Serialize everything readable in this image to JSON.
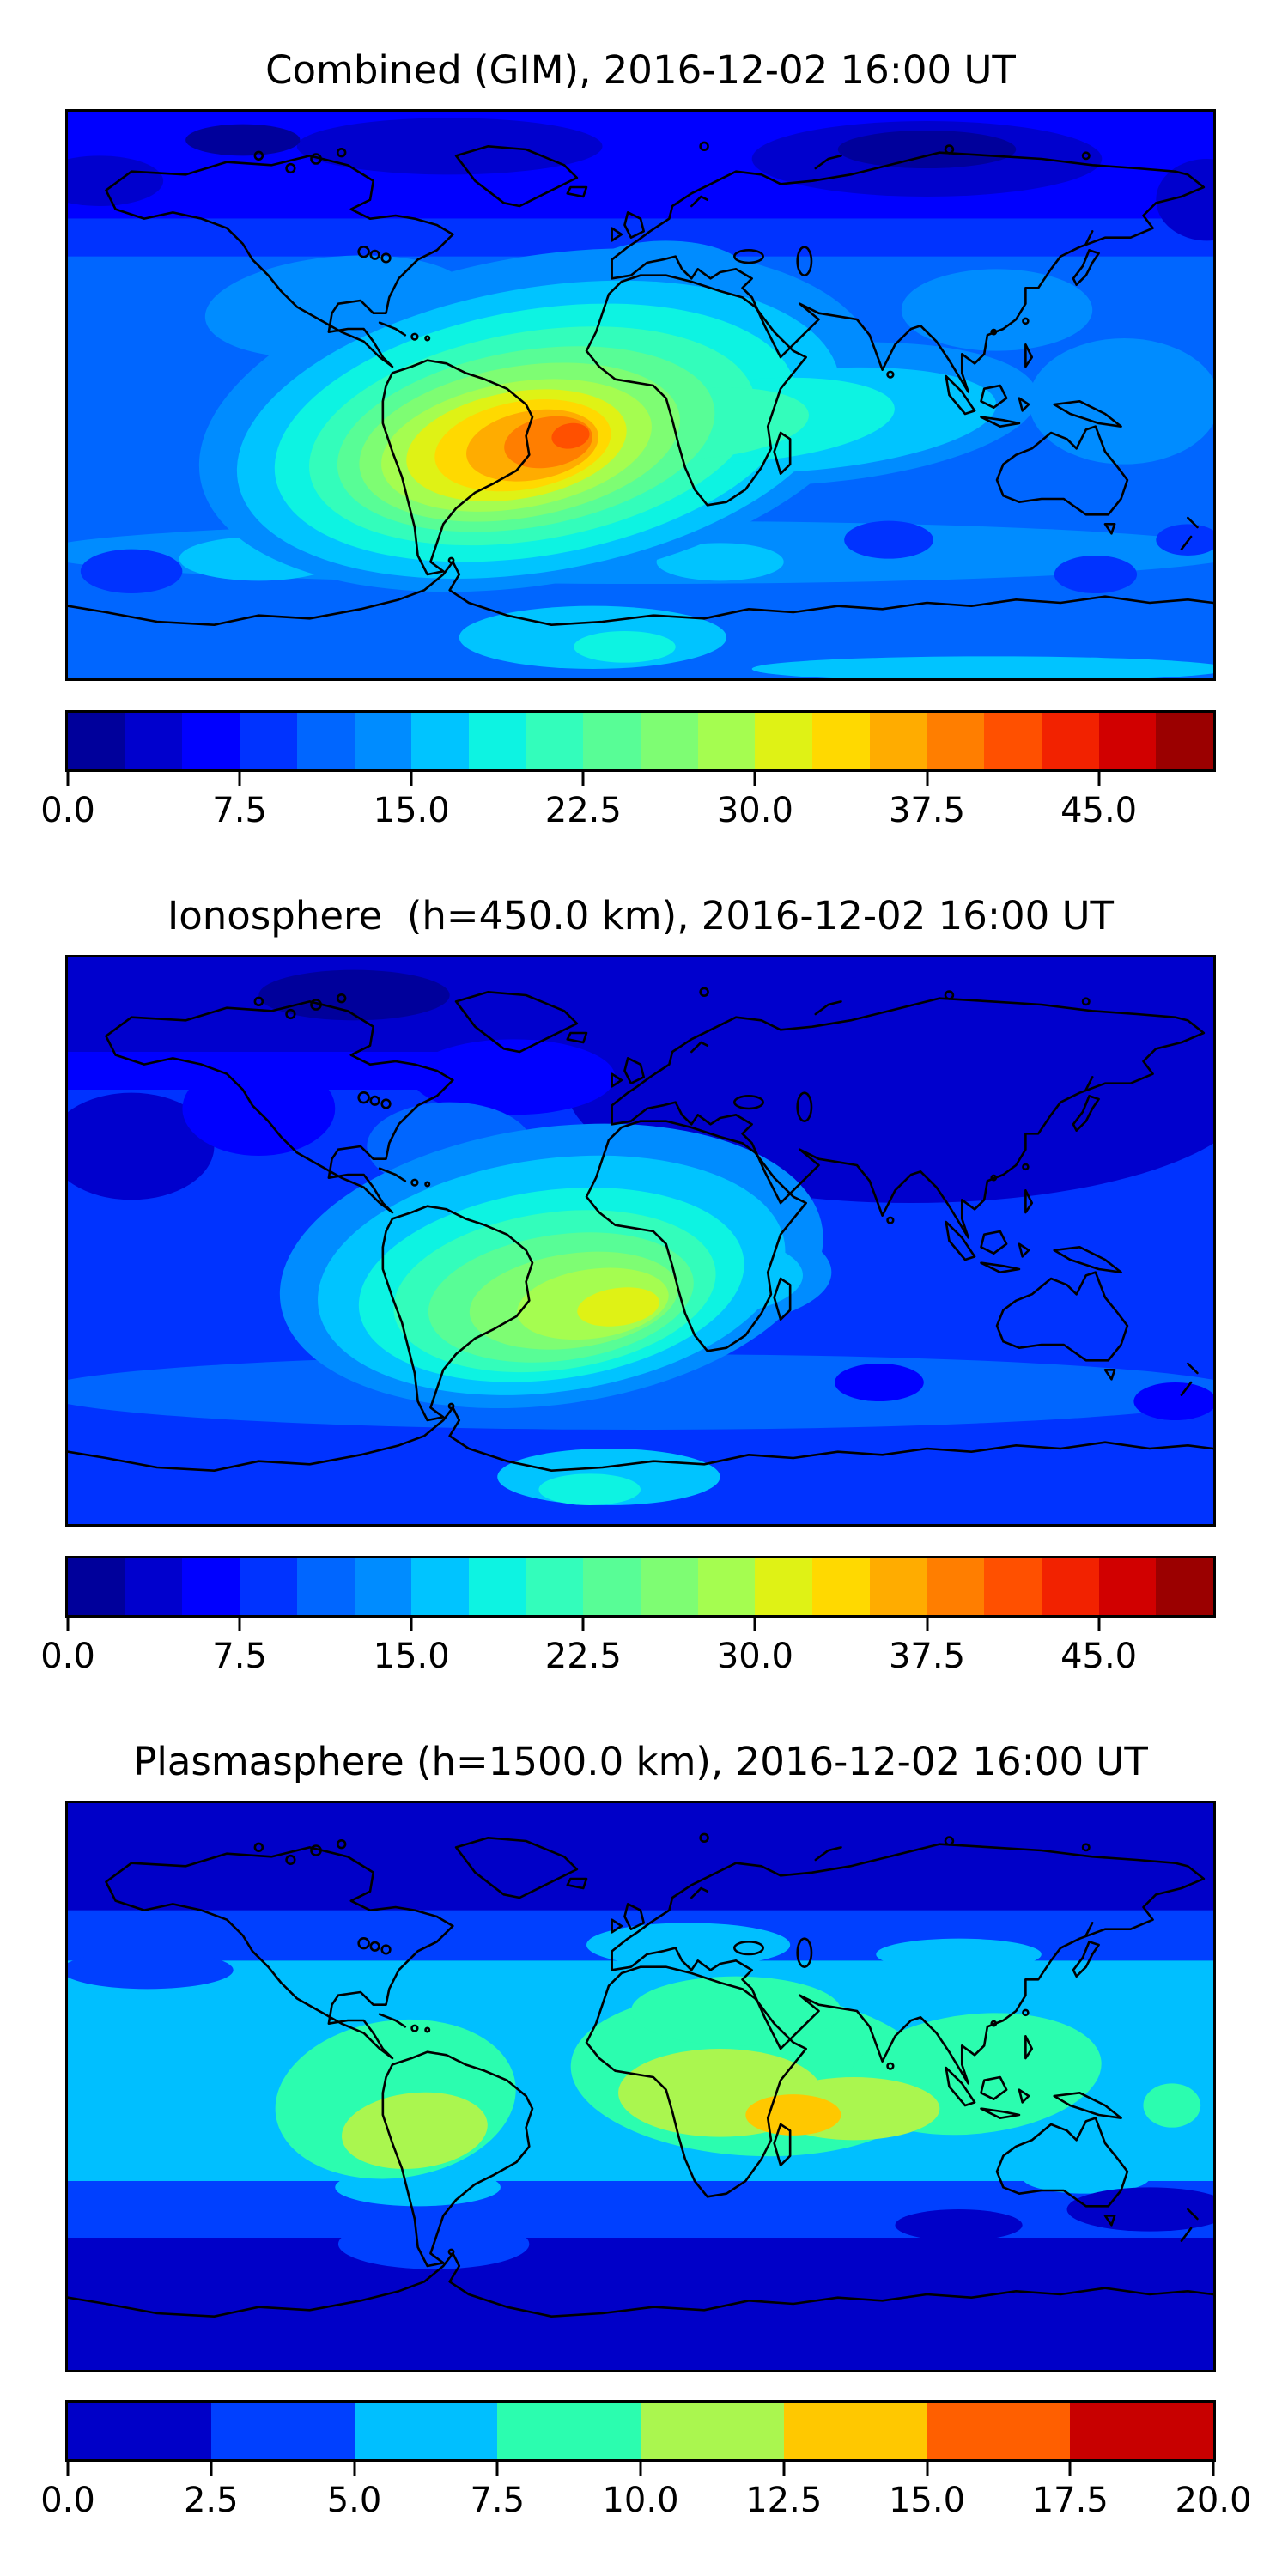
{
  "figure": {
    "background": "#ffffff",
    "frame_color": "#000000",
    "n_panels": 3
  },
  "chart_data": [
    {
      "type": "filled_contour_map",
      "title": "Combined (GIM), 2016-12-02 16:00 UT",
      "layer": "Combined (GIM)",
      "datetime": "2016-12-02 16:00 UT",
      "projection": "equirectangular",
      "lon_range": [
        -180,
        180
      ],
      "lat_range": [
        -90,
        90
      ],
      "colormap": "jet",
      "levels": {
        "min": 0,
        "max": 50,
        "step": 2.5
      },
      "colorbar_orientation": "horizontal",
      "colorbar_ticks": {
        "labels": [
          "0.0",
          "7.5",
          "15.0",
          "22.5",
          "30.0",
          "37.5",
          "45.0"
        ],
        "values": [
          0,
          7.5,
          15,
          22.5,
          30,
          37.5,
          45
        ]
      },
      "palette": [
        "#00009B",
        "#0000CD",
        "#0000FF",
        "#0033FF",
        "#0066FF",
        "#008CFF",
        "#00C4FF",
        "#0DF3E2",
        "#33FDBB",
        "#58FD96",
        "#7EFD73",
        "#A5FD50",
        "#DFF215",
        "#FFD900",
        "#FFAC00",
        "#FF7E00",
        "#FF5000",
        "#F22200",
        "#D10000",
        "#9B0000"
      ],
      "peak": {
        "value": 42,
        "lon": -22,
        "lat": -13,
        "region": "equatorial South Atlantic between Brazil and Africa"
      },
      "base_color": "#0066FF",
      "base_level": 10,
      "feature_format": {
        "band": [
          "lat_from",
          "lat_to",
          "color",
          "level"
        ],
        "ellipse": [
          "lon",
          "lat",
          "rx",
          "ry",
          "rot_deg",
          "color",
          "level"
        ]
      },
      "features": [
        {
          "band": [
            90,
            56,
            "#0000FF",
            5
          ]
        },
        {
          "band": [
            56,
            44,
            "#0033FF",
            7.5
          ]
        },
        {
          "ellipse": [
            -170,
            68,
            20,
            8,
            0,
            "#0000CD",
            2.5
          ]
        },
        {
          "ellipse": [
            -60,
            79,
            48,
            9,
            0,
            "#0000CD",
            2.5
          ]
        },
        {
          "ellipse": [
            90,
            75,
            55,
            12,
            0,
            "#0000CD",
            2.5
          ]
        },
        {
          "ellipse": [
            178,
            62,
            16,
            13,
            0,
            "#0000CD",
            2.5
          ]
        },
        {
          "ellipse": [
            90,
            78,
            28,
            6,
            0,
            "#00009B",
            0
          ]
        },
        {
          "ellipse": [
            -125,
            81,
            18,
            5,
            0,
            "#00009B",
            0
          ]
        },
        {
          "ellipse": [
            -95,
            28,
            42,
            16,
            -5,
            "#008CFF",
            12.5
          ]
        },
        {
          "ellipse": [
            8,
            38,
            26,
            11,
            0,
            "#008CFF",
            12.5
          ]
        },
        {
          "ellipse": [
            112,
            27,
            30,
            13,
            0,
            "#008CFF",
            12.5
          ]
        },
        {
          "ellipse": [
            152,
            -2,
            30,
            20,
            0,
            "#008CFF",
            12.5
          ]
        },
        {
          "ellipse": [
            0,
            -50,
            190,
            10,
            0,
            "#008CFF",
            12.5
          ]
        },
        {
          "ellipse": [
            -120,
            -52,
            25,
            7,
            0,
            "#00C4FF",
            15
          ]
        },
        {
          "ellipse": [
            25,
            -53,
            20,
            6,
            0,
            "#00C4FF",
            15
          ]
        },
        {
          "ellipse": [
            -15,
            -77,
            42,
            10,
            0,
            "#00C4FF",
            15
          ]
        },
        {
          "ellipse": [
            110,
            -87,
            75,
            4,
            0,
            "#00C4FF",
            15
          ]
        },
        {
          "ellipse": [
            -5,
            -80,
            16,
            5,
            0,
            "#0DF3E2",
            17.5
          ]
        },
        {
          "ellipse": [
            -160,
            -56,
            16,
            7,
            0,
            "#0033FF",
            7.5
          ]
        },
        {
          "ellipse": [
            78,
            -46,
            14,
            6,
            0,
            "#0033FF",
            7.5
          ]
        },
        {
          "ellipse": [
            143,
            -57,
            13,
            6,
            0,
            "#0033FF",
            7.5
          ]
        },
        {
          "ellipse": [
            172,
            -46,
            10,
            5,
            0,
            "#0033FF",
            7.5
          ]
        },
        {
          "ellipse": [
            -32,
            -8,
            108,
            52,
            -10,
            "#008CFF",
            12.5
          ]
        },
        {
          "ellipse": [
            55,
            -6,
            70,
            22,
            -5,
            "#008CFF",
            12.5
          ]
        },
        {
          "ellipse": [
            -32,
            -11,
            96,
            45,
            -10,
            "#00C4FF",
            15
          ]
        },
        {
          "ellipse": [
            52,
            -8,
            60,
            16,
            -5,
            "#00C4FF",
            15
          ]
        },
        {
          "ellipse": [
            -33,
            -12,
            83,
            39,
            -10,
            "#0DF3E2",
            17.5
          ]
        },
        {
          "ellipse": [
            35,
            -8,
            45,
            13,
            -5,
            "#0DF3E2",
            17.5
          ]
        },
        {
          "ellipse": [
            -34,
            -13,
            71,
            33,
            -10,
            "#33FDBB",
            20
          ]
        },
        {
          "ellipse": [
            20,
            -9,
            33,
            11,
            -5,
            "#33FDBB",
            20
          ]
        },
        {
          "ellipse": [
            -36,
            -14,
            60,
            28,
            -10,
            "#58FD96",
            22.5
          ]
        },
        {
          "ellipse": [
            -38,
            -15,
            51,
            24,
            -10,
            "#7EFD73",
            25
          ]
        },
        {
          "ellipse": [
            -39,
            -16,
            43,
            20,
            -10,
            "#A5FD50",
            27.5
          ]
        },
        {
          "ellipse": [
            -39,
            -16,
            35,
            17,
            -10,
            "#DFF215",
            30
          ]
        },
        {
          "ellipse": [
            -37,
            -16,
            28,
            14,
            -10,
            "#FFD900",
            32.5
          ]
        },
        {
          "ellipse": [
            -34,
            -16,
            21,
            11,
            -10,
            "#FFAC00",
            35
          ]
        },
        {
          "ellipse": [
            -29,
            -15,
            14,
            8,
            -10,
            "#FF7E00",
            37.5
          ]
        },
        {
          "ellipse": [
            -22,
            -13,
            6,
            4,
            -10,
            "#FF5000",
            40
          ]
        }
      ]
    },
    {
      "type": "filled_contour_map",
      "title": "Ionosphere  (h=450.0 km), 2016-12-02 16:00 UT",
      "layer": "Ionosphere",
      "height_km": 450.0,
      "datetime": "2016-12-02 16:00 UT",
      "projection": "equirectangular",
      "lon_range": [
        -180,
        180
      ],
      "lat_range": [
        -90,
        90
      ],
      "colormap": "jet",
      "levels": {
        "min": 0,
        "max": 50,
        "step": 2.5
      },
      "colorbar_orientation": "horizontal",
      "colorbar_ticks": {
        "labels": [
          "0.0",
          "7.5",
          "15.0",
          "22.5",
          "30.0",
          "37.5",
          "45.0"
        ],
        "values": [
          0,
          7.5,
          15,
          22.5,
          30,
          37.5,
          45
        ]
      },
      "palette": [
        "#00009B",
        "#0000CD",
        "#0000FF",
        "#0033FF",
        "#0066FF",
        "#008CFF",
        "#00C4FF",
        "#0DF3E2",
        "#33FDBB",
        "#58FD96",
        "#7EFD73",
        "#A5FD50",
        "#DFF215",
        "#FFD900",
        "#FFAC00",
        "#FF7E00",
        "#FF5000",
        "#F22200",
        "#D10000",
        "#9B0000"
      ],
      "peak": {
        "value": 31,
        "lon": -7,
        "lat": -21,
        "region": "South Atlantic anomaly region"
      },
      "base_color": "#0033FF",
      "base_level": 7.5,
      "feature_format": {
        "band": [
          "lat_from",
          "lat_to",
          "color",
          "level"
        ],
        "ellipse": [
          "lon",
          "lat",
          "rx",
          "ry",
          "rot_deg",
          "color",
          "level"
        ]
      },
      "features": [
        {
          "band": [
            90,
            60,
            "#0000CD",
            2.5
          ]
        },
        {
          "band": [
            60,
            48,
            "#0000FF",
            5
          ]
        },
        {
          "ellipse": [
            85,
            48,
            108,
            36,
            0,
            "#0000CD",
            2.5
          ]
        },
        {
          "ellipse": [
            -160,
            30,
            26,
            17,
            0,
            "#0000CD",
            2.5
          ]
        },
        {
          "ellipse": [
            -90,
            78,
            30,
            8,
            0,
            "#00009B",
            0
          ]
        },
        {
          "ellipse": [
            -120,
            42,
            24,
            15,
            0,
            "#0000FF",
            5
          ]
        },
        {
          "ellipse": [
            -40,
            52,
            32,
            12,
            0,
            "#0000FF",
            5
          ]
        },
        {
          "ellipse": [
            -60,
            30,
            26,
            14,
            0,
            "#0066FF",
            10
          ]
        },
        {
          "ellipse": [
            0,
            -48,
            190,
            12,
            0,
            "#0066FF",
            10
          ]
        },
        {
          "ellipse": [
            -10,
            -75,
            35,
            9,
            0,
            "#00C4FF",
            15
          ]
        },
        {
          "ellipse": [
            -16,
            -79,
            16,
            5,
            0,
            "#0DF3E2",
            17.5
          ]
        },
        {
          "ellipse": [
            75,
            -45,
            14,
            6,
            0,
            "#0000FF",
            5
          ]
        },
        {
          "ellipse": [
            168,
            -51,
            13,
            6,
            0,
            "#0000FF",
            5
          ]
        },
        {
          "ellipse": [
            -28,
            -8,
            86,
            44,
            -8,
            "#008CFF",
            12.5
          ]
        },
        {
          "ellipse": [
            -20,
            2,
            30,
            14,
            0,
            "#008CFF",
            12.5
          ]
        },
        {
          "ellipse": [
            20,
            -10,
            40,
            17,
            0,
            "#008CFF",
            12.5
          ]
        },
        {
          "ellipse": [
            -28,
            -11,
            74,
            37,
            -8,
            "#00C4FF",
            15
          ]
        },
        {
          "ellipse": [
            -20,
            1,
            24,
            11,
            0,
            "#00C4FF",
            15
          ]
        },
        {
          "ellipse": [
            18,
            -11,
            33,
            13,
            0,
            "#00C4FF",
            15
          ]
        },
        {
          "ellipse": [
            -28,
            -14,
            61,
            30,
            -8,
            "#0DF3E2",
            17.5
          ]
        },
        {
          "ellipse": [
            -27,
            -16,
            51,
            25,
            -8,
            "#33FDBB",
            20
          ]
        },
        {
          "ellipse": [
            -25,
            -18,
            42,
            20,
            -8,
            "#58FD96",
            22.5
          ]
        },
        {
          "ellipse": [
            -21,
            -19,
            33,
            15,
            -8,
            "#7EFD73",
            25
          ]
        },
        {
          "ellipse": [
            -15,
            -20,
            24,
            11,
            -8,
            "#A5FD50",
            27.5
          ]
        },
        {
          "ellipse": [
            -7,
            -21,
            13,
            6,
            -8,
            "#DFF215",
            30
          ]
        }
      ]
    },
    {
      "type": "filled_contour_map",
      "title": "Plasmasphere (h=1500.0 km), 2016-12-02 16:00 UT",
      "layer": "Plasmasphere",
      "height_km": 1500.0,
      "datetime": "2016-12-02 16:00 UT",
      "projection": "equirectangular",
      "lon_range": [
        -180,
        180
      ],
      "lat_range": [
        -90,
        90
      ],
      "colormap": "jet",
      "levels": {
        "min": 0,
        "max": 20,
        "step": 2.5
      },
      "colorbar_orientation": "horizontal",
      "colorbar_ticks": {
        "labels": [
          "0.0",
          "2.5",
          "5.0",
          "7.5",
          "10.0",
          "12.5",
          "15.0",
          "17.5",
          "20.0"
        ],
        "values": [
          0,
          2.5,
          5,
          7.5,
          10,
          12.5,
          15,
          17.5,
          20
        ]
      },
      "palette": [
        "#0000C8",
        "#0040FF",
        "#00BFFF",
        "#2BFDAF",
        "#AAF64F",
        "#FFC800",
        "#FF5F00",
        "#C80000"
      ],
      "peak": {
        "value": 14,
        "lon": 48,
        "lat": -9,
        "region": "western Indian Ocean off East Africa"
      },
      "base_color": "#0000C8",
      "base_level": 0,
      "feature_format": {
        "band": [
          "lat_from",
          "lat_to",
          "color",
          "level"
        ],
        "ellipse": [
          "lon",
          "lat",
          "rx",
          "ry",
          "rot_deg",
          "color",
          "level"
        ]
      },
      "features": [
        {
          "band": [
            56,
            40,
            "#0040FF",
            2.5
          ]
        },
        {
          "band": [
            40,
            -30,
            "#00BFFF",
            5
          ]
        },
        {
          "band": [
            -30,
            -48,
            "#0040FF",
            2.5
          ]
        },
        {
          "ellipse": [
            15,
            45,
            32,
            7,
            0,
            "#00BFFF",
            5
          ]
        },
        {
          "ellipse": [
            100,
            42,
            26,
            5,
            0,
            "#00BFFF",
            5
          ]
        },
        {
          "ellipse": [
            -155,
            37,
            27,
            6,
            0,
            "#0040FF",
            2.5
          ]
        },
        {
          "ellipse": [
            -65,
            -50,
            30,
            8,
            0,
            "#0040FF",
            2.5
          ]
        },
        {
          "ellipse": [
            -70,
            -32,
            26,
            6,
            0,
            "#00BFFF",
            5
          ]
        },
        {
          "ellipse": [
            140,
            -29,
            20,
            5,
            0,
            "#00BFFF",
            5
          ]
        },
        {
          "ellipse": [
            160,
            -39,
            26,
            7,
            0,
            "#0000C8",
            0
          ]
        },
        {
          "ellipse": [
            100,
            -44,
            20,
            5,
            0,
            "#0000C8",
            0
          ]
        },
        {
          "ellipse": [
            -77,
            -4,
            38,
            25,
            -8,
            "#2BFDAF",
            7.5
          ]
        },
        {
          "ellipse": [
            35,
            4,
            57,
            26,
            3,
            "#2BFDAF",
            7.5
          ]
        },
        {
          "ellipse": [
            30,
            24,
            33,
            11,
            0,
            "#2BFDAF",
            7.5
          ]
        },
        {
          "ellipse": [
            105,
            4,
            40,
            19,
            -6,
            "#2BFDAF",
            7.5
          ]
        },
        {
          "ellipse": [
            167,
            -6,
            9,
            7,
            0,
            "#2BFDAF",
            7.5
          ]
        },
        {
          "ellipse": [
            -71,
            -14,
            23,
            12,
            -6,
            "#AAF64F",
            10
          ]
        },
        {
          "ellipse": [
            25,
            -2,
            32,
            14,
            0,
            "#AAF64F",
            10
          ]
        },
        {
          "ellipse": [
            67,
            -7,
            27,
            10,
            0,
            "#AAF64F",
            10
          ]
        },
        {
          "ellipse": [
            48,
            -9,
            15,
            6.5,
            0,
            "#FFC800",
            12.5
          ]
        }
      ]
    }
  ]
}
